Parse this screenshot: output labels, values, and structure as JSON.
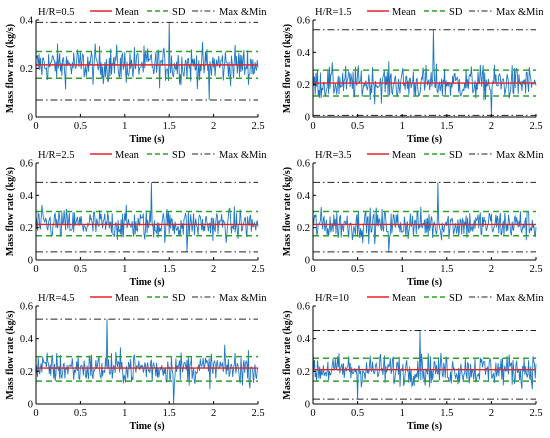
{
  "figure": {
    "legend_labels": {
      "mean": "Mean",
      "sd": "SD",
      "extrema": "Max &Min"
    },
    "colors": {
      "signal": "#1f77c4",
      "mean": "#e3242b",
      "sd": "#2ea02e",
      "extrema": "#222222",
      "axis": "#000000"
    }
  },
  "chart_data": [
    {
      "type": "line",
      "title": "H/R=0.5",
      "xlabel": "Time (s)",
      "ylabel": "Mass flow rate (kg/s)",
      "xlim": [
        0,
        2.5
      ],
      "ylim": [
        0,
        0.4
      ],
      "xticks": [
        "0",
        "0.5",
        "1",
        "1.5",
        "2",
        "2.5"
      ],
      "yticks": [
        "0",
        "0.2",
        "0.4"
      ],
      "series": [
        {
          "name": "Mean",
          "value": 0.215
        },
        {
          "name": "SD",
          "values": [
            0.16,
            0.27
          ]
        },
        {
          "name": "Max &Min",
          "values": [
            0.07,
            0.39
          ]
        }
      ],
      "signal": {
        "mean": 0.215,
        "sd": 0.055,
        "min": 0.07,
        "max": 0.39,
        "min_t": 1.95,
        "max_t": 1.5
      }
    },
    {
      "type": "line",
      "title": "H/R=1.5",
      "xlabel": "Time (s)",
      "ylabel": "Mass flow rate (kg/s)",
      "xlim": [
        0,
        2.5
      ],
      "ylim": [
        0,
        0.6
      ],
      "xticks": [
        "0",
        "0.5",
        "1",
        "1.5",
        "2",
        "2.5"
      ],
      "yticks": [
        "0",
        "0.2",
        "0.4",
        "0.6"
      ],
      "series": [
        {
          "name": "Mean",
          "value": 0.21
        },
        {
          "name": "SD",
          "values": [
            0.13,
            0.29
          ]
        },
        {
          "name": "Max &Min",
          "values": [
            0.01,
            0.54
          ]
        }
      ],
      "signal": {
        "mean": 0.21,
        "sd": 0.075,
        "min": 0.01,
        "max": 0.54,
        "min_t": 2.0,
        "max_t": 1.35
      }
    },
    {
      "type": "line",
      "title": "H/R=2.5",
      "xlabel": "Time (s)",
      "ylabel": "Mass flow rate (kg/s)",
      "xlim": [
        0,
        2.5
      ],
      "ylim": [
        0,
        0.6
      ],
      "xticks": [
        "0",
        "0.5",
        "1",
        "1.5",
        "2",
        "2.5"
      ],
      "yticks": [
        "0",
        "0.2",
        "0.4",
        "0.6"
      ],
      "series": [
        {
          "name": "Mean",
          "value": 0.22
        },
        {
          "name": "SD",
          "values": [
            0.15,
            0.3
          ]
        },
        {
          "name": "Max &Min",
          "values": [
            0.05,
            0.48
          ]
        }
      ],
      "signal": {
        "mean": 0.22,
        "sd": 0.07,
        "min": 0.05,
        "max": 0.48,
        "min_t": 1.7,
        "max_t": 1.3
      }
    },
    {
      "type": "line",
      "title": "H/R=3.5",
      "xlabel": "Time (s)",
      "ylabel": "Mass flow rate (kg/s)",
      "xlim": [
        0,
        2.5
      ],
      "ylim": [
        0,
        0.6
      ],
      "xticks": [
        "0",
        "0.5",
        "1",
        "1.5",
        "2",
        "2.5"
      ],
      "yticks": [
        "0",
        "0.2",
        "0.4",
        "0.6"
      ],
      "series": [
        {
          "name": "Mean",
          "value": 0.22
        },
        {
          "name": "SD",
          "values": [
            0.15,
            0.3
          ]
        },
        {
          "name": "Max &Min",
          "values": [
            0.05,
            0.48
          ]
        }
      ],
      "signal": {
        "mean": 0.22,
        "sd": 0.07,
        "min": 0.05,
        "max": 0.48,
        "min_t": 0.85,
        "max_t": 1.4
      }
    },
    {
      "type": "line",
      "title": "H/R=4.5",
      "xlabel": "Time (s)",
      "ylabel": "Mass flow rate (kg/s)",
      "xlim": [
        0,
        2.5
      ],
      "ylim": [
        0,
        0.6
      ],
      "xticks": [
        "0",
        "0.5",
        "1",
        "1.5",
        "2",
        "2.5"
      ],
      "yticks": [
        "0",
        "0.2",
        "0.4",
        "0.6"
      ],
      "series": [
        {
          "name": "Mean",
          "value": 0.22
        },
        {
          "name": "SD",
          "values": [
            0.14,
            0.29
          ]
        },
        {
          "name": "Max &Min",
          "values": [
            0.0,
            0.52
          ]
        }
      ],
      "signal": {
        "mean": 0.22,
        "sd": 0.07,
        "min": 0.0,
        "max": 0.52,
        "min_t": 1.55,
        "max_t": 0.8
      }
    },
    {
      "type": "line",
      "title": "H/R=10",
      "xlabel": "Time (s)",
      "ylabel": "Mass flow rate (kg/s)",
      "xlim": [
        0,
        2.5
      ],
      "ylim": [
        0,
        0.6
      ],
      "xticks": [
        "0",
        "0.5",
        "1",
        "1.5",
        "2",
        "2.5"
      ],
      "yticks": [
        "0",
        "0.2",
        "0.4",
        "0.6"
      ],
      "series": [
        {
          "name": "Mean",
          "value": 0.21
        },
        {
          "name": "SD",
          "values": [
            0.14,
            0.28
          ]
        },
        {
          "name": "Max &Min",
          "values": [
            0.03,
            0.45
          ]
        }
      ],
      "signal": {
        "mean": 0.21,
        "sd": 0.07,
        "min": 0.03,
        "max": 0.45,
        "min_t": 0.5,
        "max_t": 1.2
      }
    }
  ]
}
